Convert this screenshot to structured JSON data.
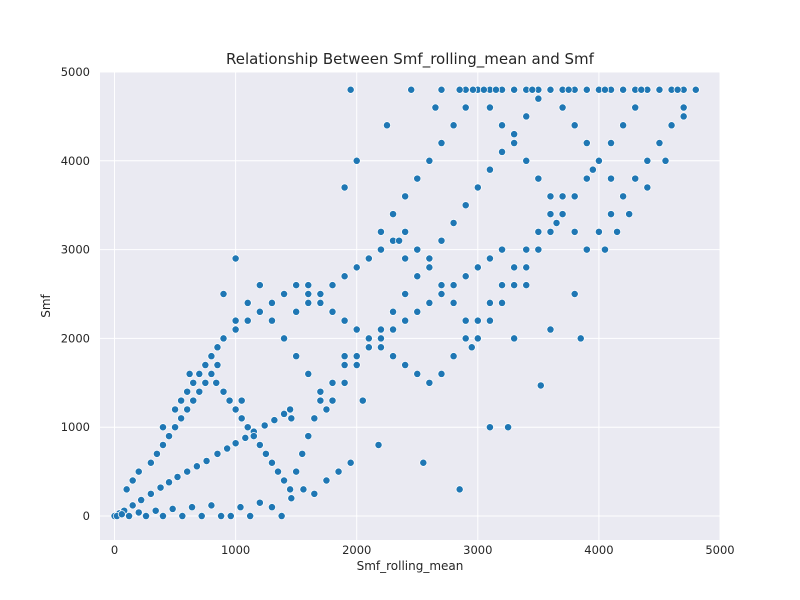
{
  "chart_data": {
    "type": "scatter",
    "title": "Relationship Between Smf_rolling_mean and Smf",
    "xlabel": "Smf_rolling_mean",
    "ylabel": "Smf",
    "xlim": [
      -120,
      5000
    ],
    "ylim": [
      -270,
      5000
    ],
    "xticks": [
      0,
      1000,
      2000,
      3000,
      4000,
      5000
    ],
    "yticks": [
      0,
      1000,
      2000,
      3000,
      4000,
      5000
    ],
    "grid": true,
    "point_color": "#1f77b4",
    "point_edge_color": "#ffffff",
    "background_color": "#eaeaf2",
    "x": [
      0,
      40,
      80,
      150,
      220,
      300,
      380,
      450,
      520,
      600,
      680,
      760,
      850,
      930,
      1000,
      1080,
      1150,
      1240,
      1320,
      1400,
      1450,
      20,
      60,
      120,
      200,
      260,
      340,
      400,
      480,
      560,
      640,
      720,
      800,
      880,
      960,
      1040,
      1120,
      1200,
      1300,
      1380,
      1460,
      1560,
      1650,
      1750,
      1850,
      1950,
      100,
      150,
      200,
      300,
      350,
      400,
      450,
      500,
      550,
      600,
      650,
      700,
      750,
      800,
      850,
      900,
      950,
      1000,
      1050,
      1100,
      1150,
      1200,
      1250,
      1300,
      1350,
      1400,
      1450,
      1500,
      1550,
      1600,
      1650,
      1700,
      1800,
      1900,
      2000,
      2100,
      2200,
      2300,
      2400,
      2500,
      2600,
      2700,
      2800,
      2900,
      3000,
      3100,
      3200,
      400,
      500,
      550,
      600,
      650,
      700,
      750,
      800,
      850,
      900,
      1000,
      1100,
      1200,
      1300,
      1400,
      1500,
      1600,
      1700,
      1800,
      1900,
      2000,
      2100,
      2200,
      2300,
      2400,
      2500,
      2600,
      2700,
      2800,
      2900,
      3000,
      3100,
      3200,
      3300,
      3400,
      3500,
      3600,
      3700,
      800,
      900,
      1000,
      1100,
      1200,
      1300,
      1400,
      1500,
      1600,
      1700,
      1800,
      1900,
      2000,
      2100,
      2200,
      2300,
      2400,
      2500,
      2600,
      2700,
      2800,
      2900,
      3000,
      3100,
      3200,
      3300,
      3400,
      3500,
      3600,
      3700,
      3800,
      3900,
      4000,
      4100,
      1500,
      1600,
      1700,
      1800,
      1900,
      2000,
      2100,
      2200,
      2300,
      2400,
      2500,
      2600,
      2700,
      2800,
      2900,
      3000,
      3100,
      3200,
      3300,
      3400,
      3500,
      3600,
      3700,
      3800,
      3900,
      4000,
      4100,
      4200,
      4300,
      4400,
      2200,
      2300,
      2400,
      2500,
      2600,
      2700,
      2800,
      2900,
      3000,
      3100,
      3200,
      3300,
      3400,
      3500,
      3600,
      3700,
      3800,
      3900,
      4000,
      4100,
      4200,
      4300,
      4400,
      4500,
      4600,
      4700,
      2900,
      3000,
      3100,
      3200,
      3300,
      3400,
      3500,
      3600,
      3700,
      3800,
      3900,
      4000,
      4100,
      4200,
      4300,
      4400,
      4500,
      4600,
      4700,
      4800,
      1950,
      2450,
      2700,
      2850,
      2960,
      3050,
      3150,
      3300,
      3450,
      3600,
      3750,
      3900,
      4050,
      4200,
      4350,
      4500,
      4650,
      4800,
      1000,
      900,
      1700,
      1600,
      2400,
      2500,
      2350,
      3100,
      3250,
      3520,
      2850,
      2550,
      2180,
      2050,
      1900,
      1750,
      1460,
      1050,
      840,
      620,
      2950,
      3300,
      3600,
      3800,
      3850,
      4050,
      4150,
      4250,
      4400,
      4550,
      4700,
      3400,
      3650,
      3950,
      2650,
      2250,
      2000,
      1900
    ],
    "y": [
      0,
      30,
      60,
      120,
      180,
      250,
      320,
      380,
      440,
      500,
      560,
      620,
      700,
      760,
      820,
      880,
      950,
      1020,
      1080,
      1150,
      1200,
      0,
      20,
      0,
      40,
      0,
      60,
      0,
      80,
      0,
      100,
      0,
      120,
      0,
      0,
      100,
      0,
      150,
      100,
      0,
      200,
      300,
      250,
      400,
      500,
      600,
      300,
      400,
      500,
      600,
      700,
      800,
      900,
      1000,
      1100,
      1200,
      1300,
      1400,
      1500,
      1600,
      1700,
      1400,
      1300,
      1200,
      1100,
      1000,
      900,
      800,
      700,
      600,
      500,
      400,
      300,
      500,
      700,
      900,
      1100,
      1300,
      1500,
      1700,
      1800,
      1900,
      2000,
      2100,
      2200,
      2300,
      2400,
      2500,
      2600,
      2700,
      2800,
      2900,
      3000,
      1000,
      1200,
      1300,
      1400,
      1500,
      1600,
      1700,
      1800,
      1900,
      2000,
      2100,
      2200,
      2300,
      2400,
      2500,
      2600,
      2500,
      2400,
      2300,
      2200,
      2100,
      2000,
      1900,
      1800,
      1700,
      1600,
      1500,
      1600,
      1800,
      2000,
      2200,
      2400,
      2600,
      2800,
      3000,
      3200,
      3400,
      3600,
      1800,
      2000,
      2200,
      2400,
      2600,
      2200,
      2000,
      1800,
      1600,
      1400,
      1300,
      1500,
      1700,
      1900,
      2100,
      2300,
      2500,
      2700,
      2900,
      3100,
      3300,
      3500,
      3700,
      3900,
      4100,
      4300,
      4500,
      4700,
      4800,
      4600,
      4400,
      4200,
      4000,
      3800,
      2300,
      2400,
      2500,
      2600,
      2700,
      2800,
      2900,
      3000,
      3100,
      3200,
      3000,
      2800,
      2600,
      2400,
      2200,
      2000,
      2200,
      2400,
      2600,
      2800,
      3000,
      3200,
      3400,
      3600,
      3800,
      4000,
      4200,
      4400,
      4600,
      4800,
      3200,
      3400,
      3600,
      3800,
      4000,
      4200,
      4400,
      4600,
      4800,
      4600,
      4400,
      4200,
      4000,
      3800,
      3600,
      3400,
      3200,
      3000,
      3200,
      3400,
      3600,
      3800,
      4000,
      4200,
      4400,
      4600,
      4800,
      4800,
      4800,
      4800,
      4800,
      4800,
      4800,
      4800,
      4800,
      4800,
      4800,
      4800,
      4800,
      4800,
      4800,
      4800,
      4800,
      4800,
      4800,
      4800,
      4800,
      4800,
      4800,
      4800,
      4800,
      4800,
      4800,
      4800,
      4800,
      4800,
      4800,
      4800,
      4800,
      4800,
      4800,
      4800,
      4800,
      4800,
      2900,
      2500,
      2400,
      2600,
      2900,
      3000,
      3100,
      1000,
      1000,
      1470,
      300,
      600,
      800,
      1300,
      1800,
      1200,
      1100,
      1300,
      1500,
      1600,
      1900,
      2000,
      2100,
      2500,
      2000,
      3000,
      3200,
      3400,
      3700,
      4000,
      4500,
      2600,
      3300,
      3900,
      4600,
      4400,
      4000,
      3700
    ]
  }
}
